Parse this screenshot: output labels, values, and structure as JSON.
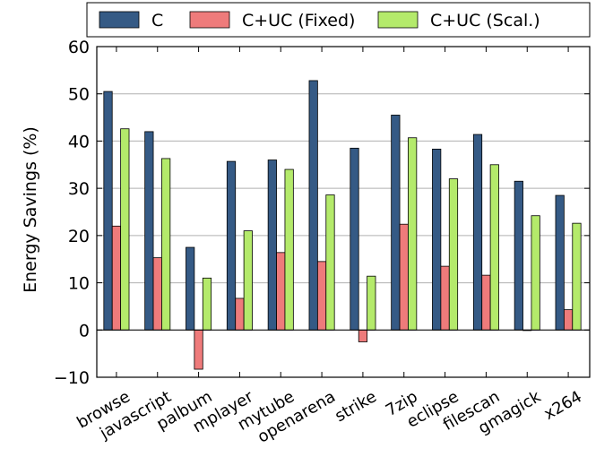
{
  "chart_data": {
    "type": "bar",
    "title": "",
    "xlabel": "",
    "ylabel": "Energy Savings (%)",
    "ylim": [
      -10,
      60
    ],
    "yticks": [
      -10,
      0,
      10,
      20,
      30,
      40,
      50,
      60
    ],
    "ytick_labels": [
      "−10",
      "0",
      "10",
      "20",
      "30",
      "40",
      "50",
      "60"
    ],
    "grid": true,
    "legend_position": "top",
    "categories": [
      "browse",
      "javascript",
      "palbum",
      "mplayer",
      "mytube",
      "openarena",
      "strike",
      "7zip",
      "eclipse",
      "filescan",
      "gmagick",
      "x264"
    ],
    "series": [
      {
        "name": "C",
        "color": "#355a85",
        "values": [
          50.5,
          42.0,
          17.5,
          35.7,
          36.0,
          52.8,
          38.5,
          45.5,
          38.3,
          41.4,
          31.5,
          28.5
        ]
      },
      {
        "name": "C+UC (Fixed)",
        "color": "#ee7b7b",
        "values": [
          22.0,
          15.3,
          -8.3,
          6.7,
          16.4,
          14.5,
          -2.5,
          22.4,
          13.5,
          11.6,
          0.0,
          4.3
        ]
      },
      {
        "name": "C+UC (Scal.)",
        "color": "#b4ea6b",
        "values": [
          42.6,
          36.3,
          11.0,
          21.0,
          34.0,
          28.6,
          11.4,
          40.7,
          32.0,
          35.0,
          24.2,
          22.6
        ]
      }
    ]
  }
}
